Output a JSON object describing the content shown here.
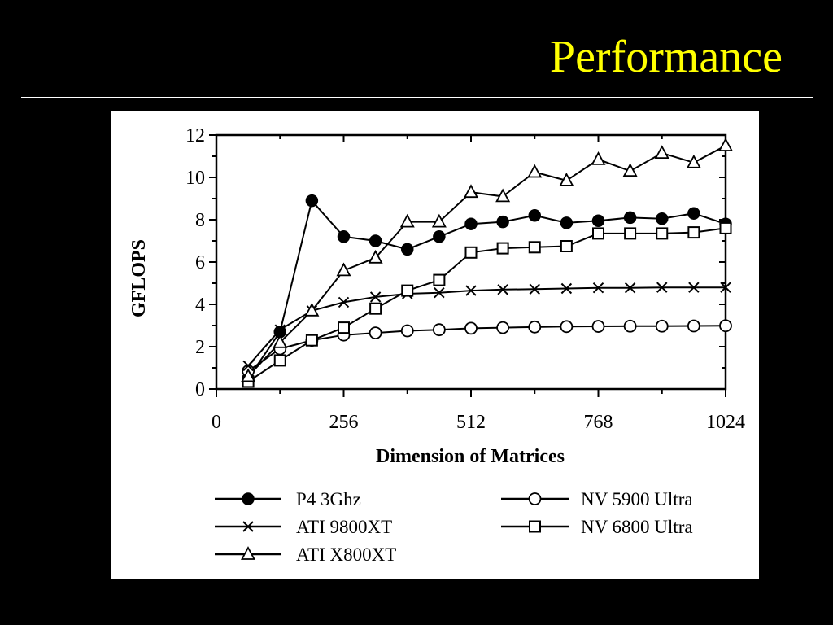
{
  "slide": {
    "title": "Performance"
  },
  "chart_data": {
    "type": "line",
    "title": "",
    "xlabel": "Dimension of Matrices",
    "ylabel": "GFLOPS",
    "xlim": [
      0,
      1024
    ],
    "ylim": [
      0,
      12
    ],
    "xticks": [
      0,
      256,
      512,
      768,
      1024
    ],
    "yticks": [
      0,
      2,
      4,
      6,
      8,
      10,
      12
    ],
    "x_tick_labels": [
      "0",
      "256",
      "512",
      "768",
      "1024"
    ],
    "y_tick_labels": [
      "0",
      "2",
      "4",
      "6",
      "8",
      "10",
      "12"
    ],
    "grid": false,
    "legend_position": "bottom",
    "x": [
      64,
      128,
      192,
      256,
      320,
      384,
      448,
      512,
      576,
      640,
      704,
      768,
      832,
      896,
      960,
      1024
    ],
    "series": [
      {
        "name": "P4 3Ghz",
        "marker": "filled-circle",
        "x": [
          64,
          128,
          192,
          256,
          320,
          384,
          448,
          512,
          576,
          640,
          704,
          768,
          832,
          896,
          960,
          1024
        ],
        "values": [
          0.5,
          2.7,
          8.9,
          7.2,
          7.0,
          6.6,
          7.2,
          7.8,
          7.9,
          8.2,
          7.85,
          7.95,
          8.1,
          8.05,
          8.3,
          7.8
        ]
      },
      {
        "name": "NV 5900 Ultra",
        "marker": "open-circle",
        "x": [
          64,
          128,
          192,
          256,
          320,
          384,
          448,
          512,
          576,
          640,
          704,
          768,
          832,
          896,
          960,
          1024
        ],
        "values": [
          0.85,
          1.9,
          2.3,
          2.55,
          2.65,
          2.75,
          2.8,
          2.87,
          2.9,
          2.93,
          2.95,
          2.96,
          2.97,
          2.97,
          2.98,
          2.99
        ]
      },
      {
        "name": "ATI 9800XT",
        "marker": "cross",
        "x": [
          64,
          128,
          192,
          256,
          320,
          384,
          448,
          512,
          576,
          640,
          704,
          768,
          832,
          896,
          960,
          1024
        ],
        "values": [
          1.1,
          2.8,
          3.7,
          4.1,
          4.35,
          4.5,
          4.55,
          4.65,
          4.7,
          4.72,
          4.75,
          4.78,
          4.78,
          4.8,
          4.8,
          4.8
        ]
      },
      {
        "name": "NV 6800 Ultra",
        "marker": "open-square",
        "x": [
          64,
          128,
          192,
          256,
          320,
          384,
          448,
          512,
          576,
          640,
          704,
          768,
          832,
          896,
          960,
          1024
        ],
        "values": [
          0.35,
          1.35,
          2.3,
          2.9,
          3.8,
          4.65,
          5.15,
          6.45,
          6.65,
          6.7,
          6.75,
          7.35,
          7.35,
          7.35,
          7.4,
          7.6
        ]
      },
      {
        "name": "ATI X800XT",
        "marker": "open-triangle",
        "x": [
          64,
          128,
          192,
          256,
          320,
          384,
          448,
          512,
          576,
          640,
          704,
          768,
          832,
          896,
          960,
          1024
        ],
        "values": [
          0.6,
          2.2,
          3.7,
          5.6,
          6.2,
          7.9,
          7.9,
          9.3,
          9.1,
          10.25,
          9.85,
          10.85,
          10.3,
          11.15,
          10.7,
          11.5
        ]
      }
    ],
    "legend_items": [
      {
        "series": 0,
        "label": "P4 3Ghz"
      },
      {
        "series": 1,
        "label": "NV 5900 Ultra"
      },
      {
        "series": 2,
        "label": "ATI 9800XT"
      },
      {
        "series": 3,
        "label": "NV 6800 Ultra"
      },
      {
        "series": 4,
        "label": "ATI X800XT"
      }
    ]
  }
}
